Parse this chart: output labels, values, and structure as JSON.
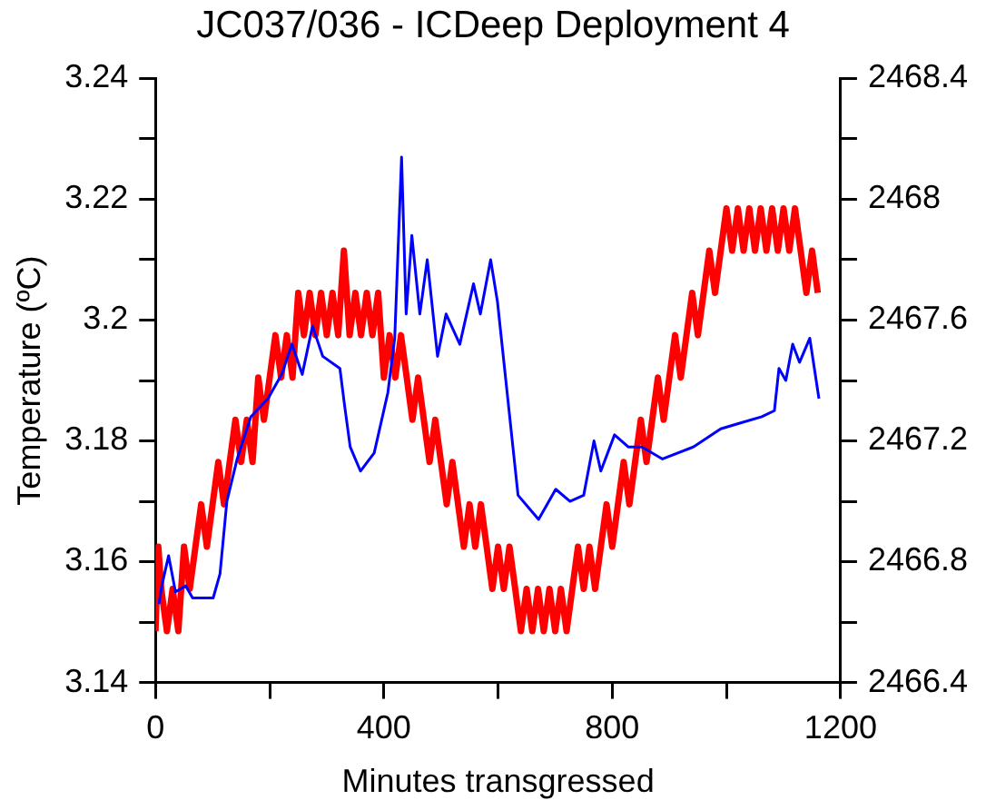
{
  "chart_data": {
    "type": "line",
    "title": "JC037/036 - ICDeep Deployment 4",
    "xlabel": "Minutes transgressed",
    "ylabel": "Temperature (ºC)",
    "xlim": [
      0,
      1200
    ],
    "xticks": [
      0,
      {
        "value": 200,
        "label": null
      },
      400,
      {
        "value": 600,
        "label": null
      },
      800,
      {
        "value": 1000,
        "label": null
      },
      1200
    ],
    "ylim": [
      3.14,
      3.24
    ],
    "yticks": [
      3.14,
      {
        "value": 3.15,
        "label": null
      },
      3.16,
      {
        "value": 3.17,
        "label": null
      },
      3.18,
      {
        "value": 3.19,
        "label": null
      },
      3.2,
      {
        "value": 3.21,
        "label": null
      },
      3.22,
      {
        "value": 3.23,
        "label": null
      },
      3.24
    ],
    "y2lim": [
      2466.4,
      2468.4
    ],
    "y2ticks": [
      2466.4,
      {
        "value": 2466.6,
        "label": null
      },
      2466.8,
      {
        "value": 2467,
        "label": null
      },
      2467.2,
      {
        "value": 2467.4,
        "label": null
      },
      2467.6,
      {
        "value": 2467.8,
        "label": null
      },
      2468,
      {
        "value": 2468.2,
        "label": null
      },
      2468.4
    ],
    "grid": false,
    "legend": false,
    "marker": "none",
    "line_style": "solid",
    "series": [
      {
        "color": "#ff0000",
        "axis": "y2",
        "x": [
          0,
          5,
          10,
          20,
          30,
          40,
          50,
          60,
          70,
          80,
          90,
          100,
          110,
          120,
          130,
          140,
          150,
          160,
          170,
          180,
          190,
          200,
          210,
          220,
          230,
          240,
          250,
          260,
          270,
          280,
          290,
          300,
          310,
          320,
          330,
          340,
          350,
          360,
          370,
          380,
          390,
          400,
          410,
          420,
          430,
          440,
          450,
          460,
          470,
          480,
          490,
          500,
          510,
          520,
          530,
          540,
          550,
          560,
          570,
          580,
          590,
          600,
          610,
          620,
          630,
          640,
          650,
          660,
          670,
          680,
          690,
          700,
          710,
          720,
          730,
          740,
          750,
          760,
          770,
          780,
          790,
          800,
          810,
          820,
          830,
          840,
          850,
          860,
          870,
          880,
          890,
          900,
          910,
          920,
          930,
          940,
          950,
          960,
          970,
          980,
          990,
          1000,
          1010,
          1020,
          1030,
          1040,
          1050,
          1060,
          1070,
          1080,
          1090,
          1100,
          1110,
          1120,
          1130,
          1140,
          1150,
          1160
        ],
        "values": [
          2466.57,
          2466.85,
          2466.71,
          2466.57,
          2466.71,
          2466.57,
          2466.85,
          2466.71,
          2466.85,
          2466.99,
          2466.85,
          2466.99,
          2467.13,
          2466.99,
          2467.13,
          2467.27,
          2467.13,
          2467.27,
          2467.13,
          2467.41,
          2467.27,
          2467.41,
          2467.55,
          2467.41,
          2467.55,
          2467.41,
          2467.69,
          2467.55,
          2467.69,
          2467.55,
          2467.69,
          2467.55,
          2467.69,
          2467.55,
          2467.83,
          2467.55,
          2467.69,
          2467.55,
          2467.69,
          2467.55,
          2467.69,
          2467.41,
          2467.55,
          2467.41,
          2467.55,
          2467.41,
          2467.27,
          2467.41,
          2467.27,
          2467.13,
          2467.27,
          2467.13,
          2466.99,
          2467.13,
          2466.99,
          2466.85,
          2466.99,
          2466.85,
          2466.99,
          2466.85,
          2466.71,
          2466.85,
          2466.71,
          2466.85,
          2466.71,
          2466.57,
          2466.71,
          2466.57,
          2466.71,
          2466.57,
          2466.71,
          2466.57,
          2466.71,
          2466.57,
          2466.71,
          2466.85,
          2466.71,
          2466.85,
          2466.71,
          2466.85,
          2466.99,
          2466.85,
          2466.99,
          2467.13,
          2466.99,
          2467.13,
          2467.27,
          2467.13,
          2467.27,
          2467.41,
          2467.27,
          2467.41,
          2467.55,
          2467.41,
          2467.55,
          2467.69,
          2467.55,
          2467.69,
          2467.83,
          2467.69,
          2467.83,
          2467.97,
          2467.83,
          2467.97,
          2467.83,
          2467.97,
          2467.83,
          2467.97,
          2467.83,
          2467.97,
          2467.83,
          2467.97,
          2467.83,
          2467.97,
          2467.83,
          2467.69,
          2467.83,
          2467.69
        ]
      },
      {
        "color": "#0000ff",
        "x": [
          6,
          11,
          23,
          35,
          53,
          65,
          101,
          113,
          125,
          143,
          167,
          197,
          221,
          239,
          257,
          275,
          293,
          323,
          331,
          341,
          359,
          383,
          407,
          419,
          431,
          439,
          449,
          463,
          476,
          494,
          509,
          533,
          557,
          569,
          587,
          599,
          617,
          635,
          653,
          671,
          701,
          726,
          750,
          768,
          780,
          804,
          828,
          852,
          888,
          942,
          990,
          1026,
          1062,
          1084,
          1092,
          1104,
          1116,
          1128,
          1146,
          1162
        ],
        "values": [
          3.153,
          3.156,
          3.161,
          3.155,
          3.156,
          3.154,
          3.154,
          3.158,
          3.17,
          3.177,
          3.184,
          3.187,
          3.191,
          3.196,
          3.191,
          3.199,
          3.194,
          3.192,
          3.186,
          3.179,
          3.175,
          3.178,
          3.188,
          3.197,
          3.227,
          3.201,
          3.214,
          3.201,
          3.21,
          3.194,
          3.201,
          3.196,
          3.206,
          3.201,
          3.21,
          3.203,
          3.187,
          3.171,
          3.169,
          3.167,
          3.172,
          3.17,
          3.171,
          3.18,
          3.175,
          3.181,
          3.179,
          3.179,
          3.177,
          3.179,
          3.182,
          3.183,
          3.184,
          3.185,
          3.192,
          3.19,
          3.196,
          3.193,
          3.197,
          3.187
        ]
      }
    ]
  }
}
